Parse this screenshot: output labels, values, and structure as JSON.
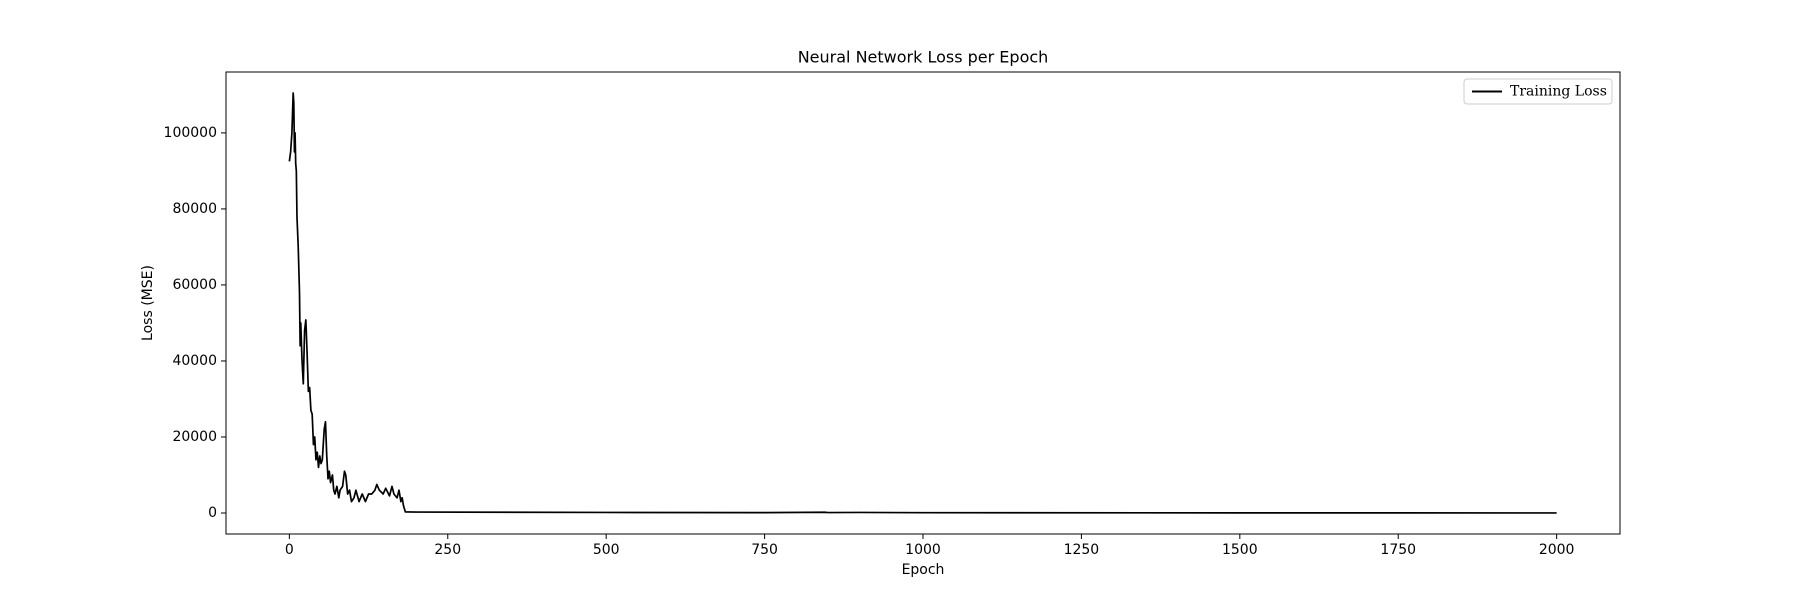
{
  "chart_data": {
    "type": "line",
    "title": "Neural Network Loss per Epoch",
    "x_label": "Epoch",
    "y_label": "Loss (MSE)",
    "x": [
      0,
      2,
      4,
      6,
      7,
      8,
      9,
      10,
      11,
      12,
      14,
      16,
      17,
      18,
      20,
      22,
      24,
      26,
      28,
      30,
      32,
      34,
      36,
      38,
      40,
      42,
      44,
      46,
      48,
      50,
      52,
      55,
      57,
      59,
      61,
      63,
      65,
      68,
      70,
      72,
      75,
      78,
      80,
      84,
      87,
      89,
      92,
      95,
      98,
      102,
      105,
      110,
      115,
      120,
      125,
      130,
      135,
      138,
      142,
      148,
      152,
      158,
      162,
      165,
      170,
      173,
      176,
      178,
      180,
      183,
      200,
      500,
      750,
      845,
      850,
      900,
      1000,
      1500,
      2000
    ],
    "series": [
      {
        "name": "Training Loss",
        "color": "#000000",
        "values": [
          92500,
          95000,
          100000,
          110500,
          108000,
          95000,
          100000,
          92000,
          90000,
          78000,
          70000,
          58000,
          44000,
          50000,
          40000,
          34000,
          48000,
          50800,
          42000,
          32000,
          33000,
          27000,
          26000,
          18000,
          20000,
          14000,
          16000,
          12000,
          15000,
          13000,
          14000,
          22000,
          24000,
          15000,
          9000,
          11000,
          8000,
          10000,
          6000,
          5000,
          7000,
          4000,
          6000,
          7000,
          11000,
          10000,
          5000,
          6000,
          3000,
          4000,
          6000,
          3000,
          5000,
          3000,
          5000,
          5000,
          6000,
          7500,
          6000,
          5000,
          6500,
          4500,
          7000,
          5000,
          4000,
          6000,
          3000,
          4000,
          2000,
          300,
          250,
          150,
          100,
          200,
          120,
          150,
          80,
          40,
          20
        ]
      }
    ],
    "xlim": [
      -100,
      2100
    ],
    "ylim": [
      -5525,
      116025
    ],
    "xticks": [
      0,
      250,
      500,
      750,
      1000,
      1250,
      1500,
      1750,
      2000
    ],
    "yticks": [
      0,
      20000,
      40000,
      60000,
      80000,
      100000
    ],
    "legend": "upper right"
  }
}
